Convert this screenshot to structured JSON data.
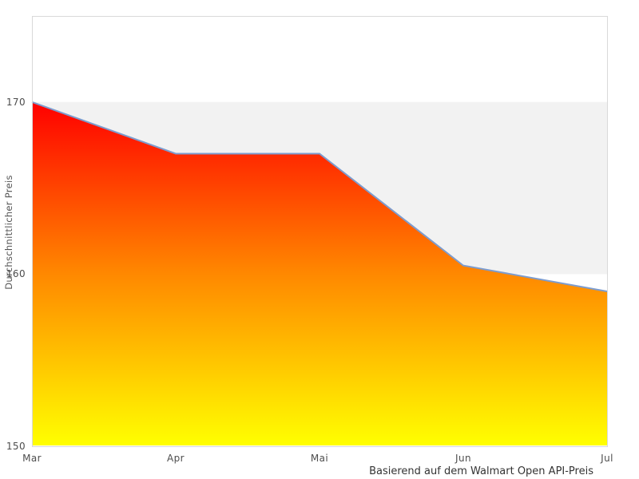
{
  "chart": {
    "y_axis_title": "Durchschnittlicher Preis",
    "caption": "Basierend auf dem Walmart Open API-Preis"
  },
  "chart_data": {
    "type": "area",
    "title": "",
    "categories": [
      "Mar",
      "Apr",
      "Mai",
      "Jun",
      "Jul"
    ],
    "series": [
      {
        "name": "Durchschnittlicher Preis",
        "values": [
          170,
          167,
          167,
          160.5,
          159
        ]
      }
    ],
    "xlabel": "",
    "ylabel": "Durchschnittlicher Preis",
    "ylim": [
      150,
      175
    ],
    "y_ticks": [
      150,
      160,
      170
    ],
    "grid": false,
    "plot_band": {
      "from": 160,
      "to": 170,
      "color": "#f2f2f2"
    },
    "legend_position": "none",
    "caption": "Basierend auf dem Walmart Open API-Preis",
    "line_color": "#7d9cce",
    "fill_gradient": {
      "top": "#ff0000",
      "mid": "#ff8800",
      "bottom": "#ffff00"
    },
    "plot_border_color": "#d9d9d9",
    "plot_background": "#ffffff"
  }
}
